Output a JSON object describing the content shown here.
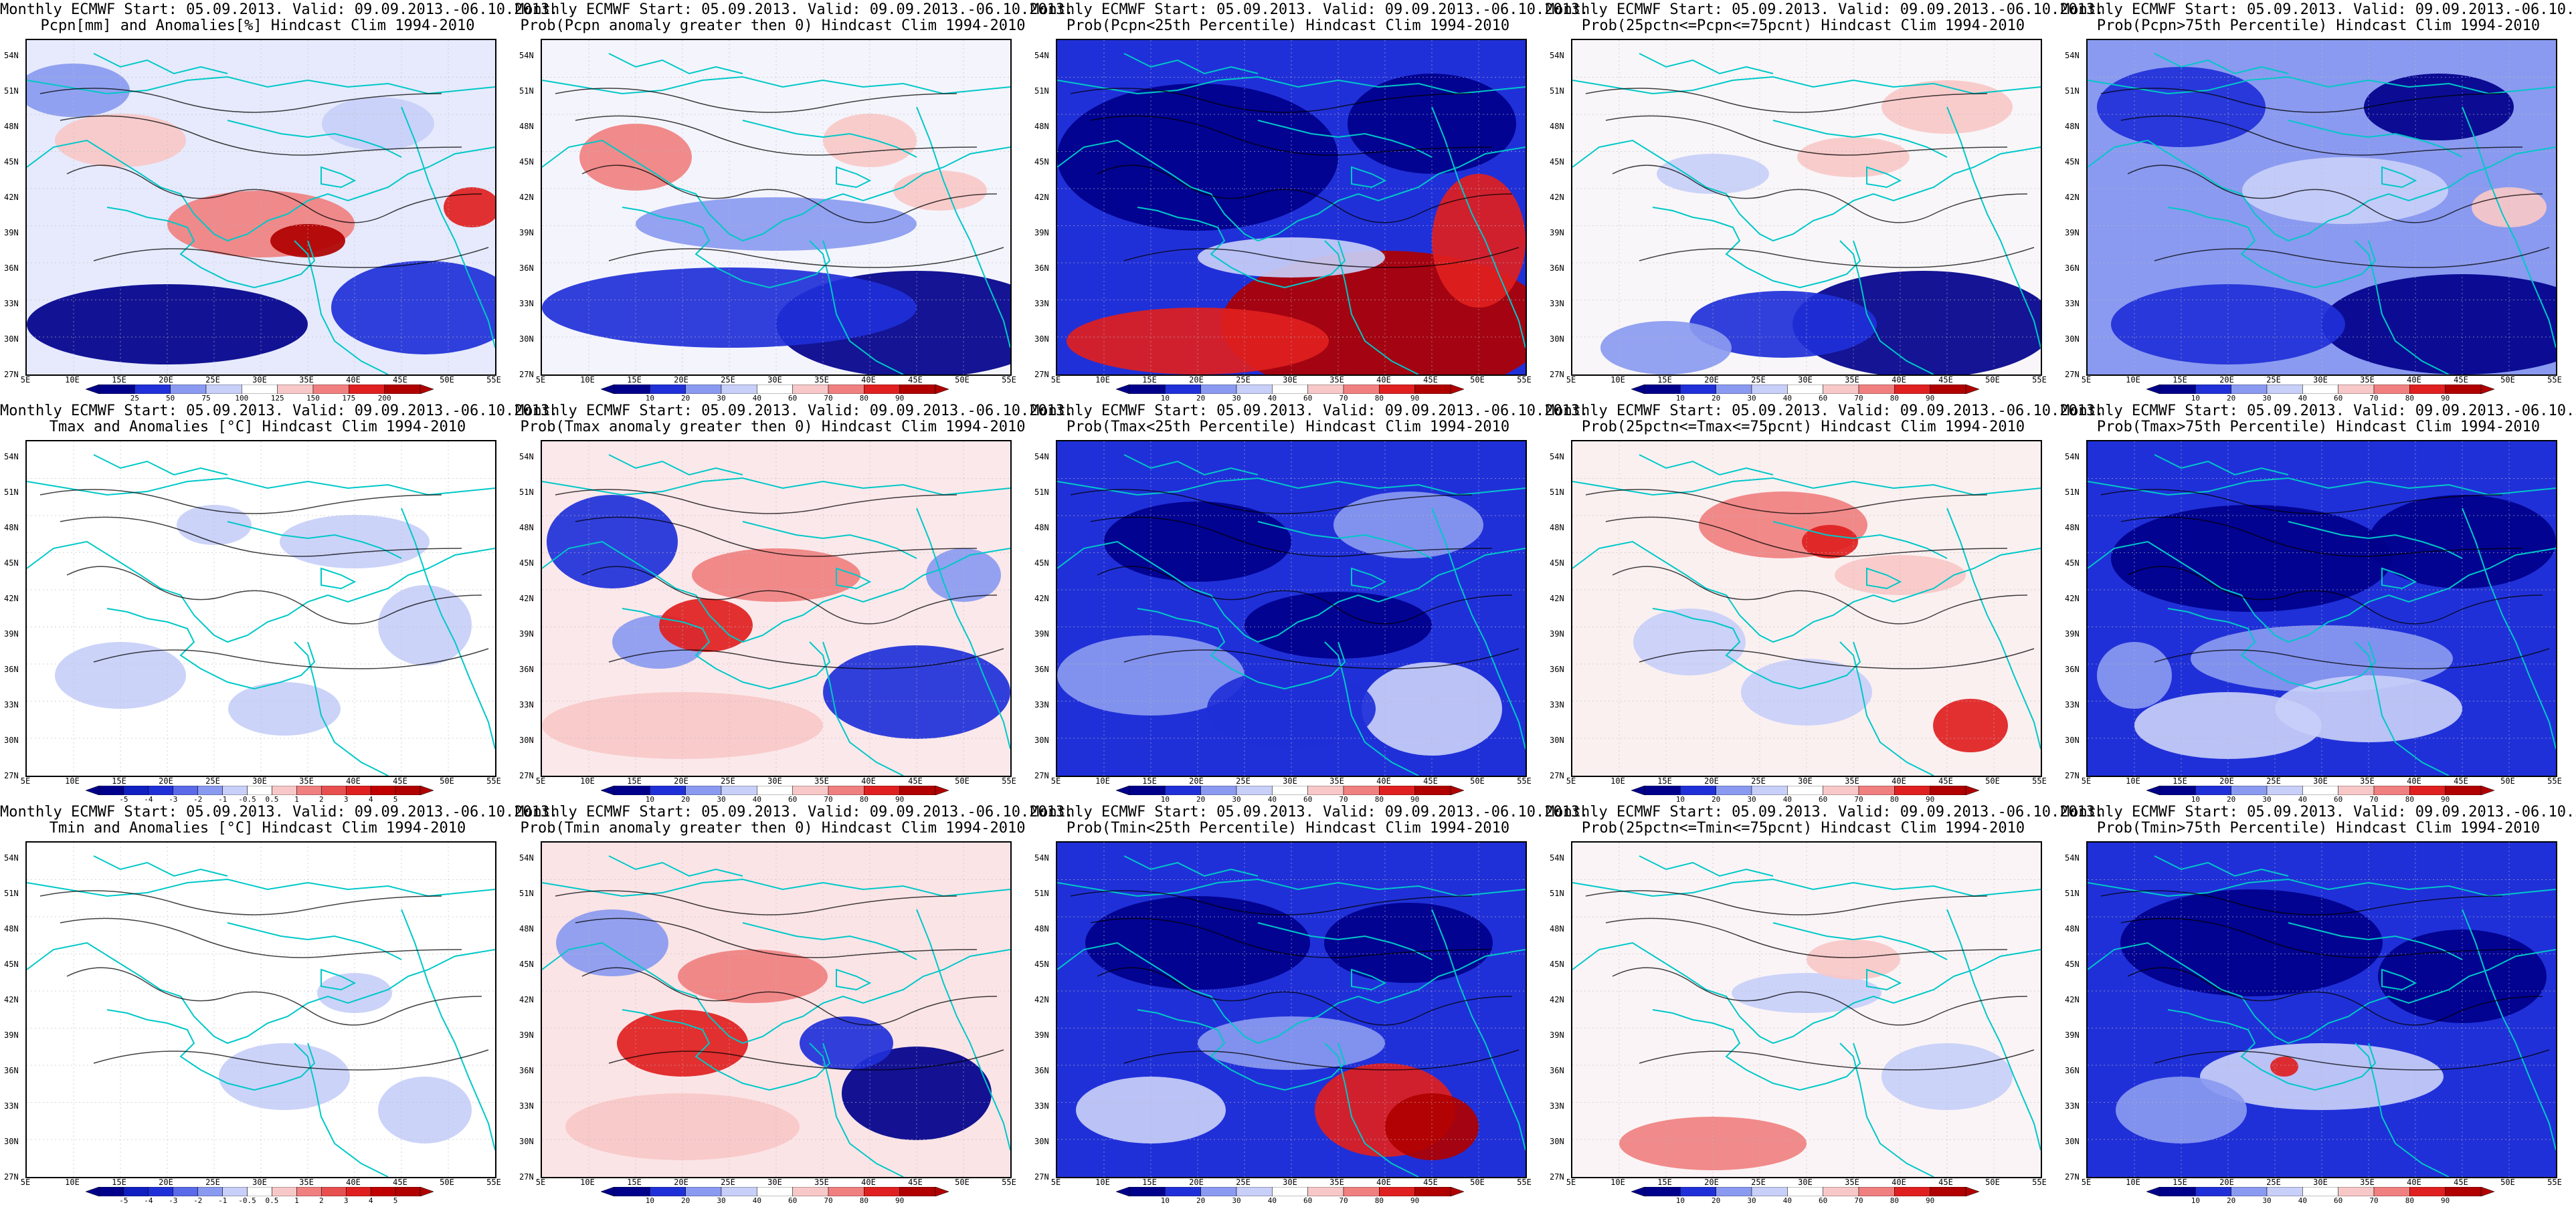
{
  "model_line": "Monthly ECMWF Start: 05.09.2013. Valid: 09.09.2013.-06.10.2013.",
  "lat_labels": [
    "54N",
    "51N",
    "48N",
    "45N",
    "42N",
    "39N",
    "36N",
    "33N",
    "30N",
    "27N"
  ],
  "lon_labels": [
    "5E",
    "10E",
    "15E",
    "20E",
    "25E",
    "30E",
    "35E",
    "40E",
    "45E",
    "50E",
    "55E"
  ],
  "colorbars": {
    "pcpn_anom": [
      "25",
      "50",
      "75",
      "100",
      "125",
      "150",
      "175",
      "200"
    ],
    "anom_deg": [
      "-5",
      "-4",
      "-3",
      "-2",
      "-1",
      "-0.5",
      "0.5",
      "1",
      "2",
      "3",
      "4",
      "5"
    ],
    "prob": [
      "10",
      "20",
      "30",
      "40",
      "60",
      "70",
      "80",
      "90"
    ]
  },
  "colors": {
    "coastline": "#00c8c8",
    "contour": "#000000",
    "blue_dark": "#00008b",
    "blue": "#2030d8",
    "blue_light": "#8a9af0",
    "blue_pale": "#c8cff8",
    "red_pale": "#f8c8c8",
    "red_light": "#f08080",
    "red": "#e02020",
    "red_dark": "#b00000"
  },
  "panels": [
    {
      "title": "Pcpn[mm] and Anomalies[%] Hindcast Clim 1994-2010",
      "colorbar": "pcpn_anom"
    },
    {
      "title": "Prob(Pcpn anomaly greater then 0) Hindcast Clim 1994-2010",
      "colorbar": "prob"
    },
    {
      "title": "Prob(Pcpn<25th Percentile) Hindcast Clim 1994-2010",
      "colorbar": "prob"
    },
    {
      "title": "Prob(25pctn<=Pcpn<=75pcnt) Hindcast Clim 1994-2010",
      "colorbar": "prob"
    },
    {
      "title": "Prob(Pcpn>75th Percentile) Hindcast Clim 1994-2010",
      "colorbar": "prob"
    },
    {
      "title": "Tmax and Anomalies [°C] Hindcast Clim 1994-2010",
      "colorbar": "anom_deg"
    },
    {
      "title": "Prob(Tmax anomaly greater then 0) Hindcast Clim 1994-2010",
      "colorbar": "prob"
    },
    {
      "title": "Prob(Tmax<25th Percentile) Hindcast Clim 1994-2010",
      "colorbar": "prob"
    },
    {
      "title": "Prob(25pctn<=Tmax<=75pcnt) Hindcast Clim 1994-2010",
      "colorbar": "prob"
    },
    {
      "title": "Prob(Tmax>75th Percentile) Hindcast Clim 1994-2010",
      "colorbar": "prob"
    },
    {
      "title": "Tmin and Anomalies [°C] Hindcast Clim 1994-2010",
      "colorbar": "anom_deg"
    },
    {
      "title": "Prob(Tmin anomaly greater then 0) Hindcast Clim 1994-2010",
      "colorbar": "prob"
    },
    {
      "title": "Prob(Tmin<25th Percentile) Hindcast Clim 1994-2010",
      "colorbar": "prob"
    },
    {
      "title": "Prob(25pctn<=Tmin<=75pcnt) Hindcast Clim 1994-2010",
      "colorbar": "prob"
    },
    {
      "title": "Prob(Tmin>75th Percentile) Hindcast Clim 1994-2010",
      "colorbar": "prob"
    }
  ]
}
